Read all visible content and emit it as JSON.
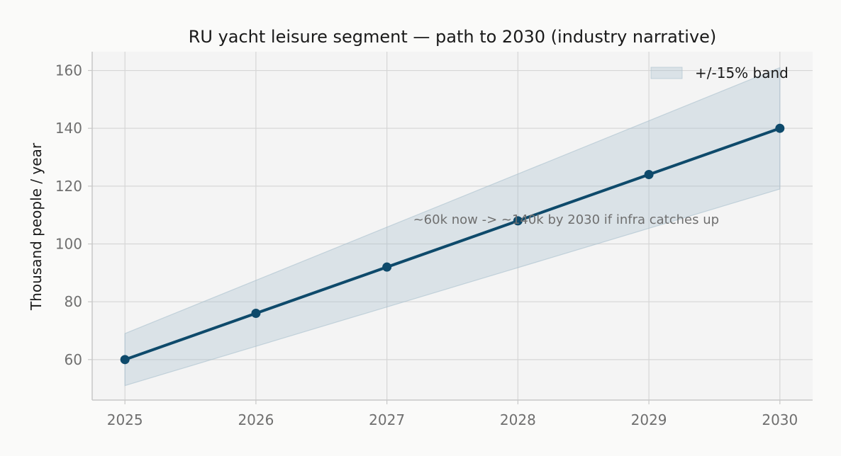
{
  "chart_data": {
    "type": "line",
    "title": "RU yacht leisure segment — path to 2030 (industry narrative)",
    "xlabel": "",
    "ylabel": "Thousand people / year",
    "x": [
      2025,
      2026,
      2027,
      2028,
      2029,
      2030
    ],
    "series": [
      {
        "values": [
          60,
          76,
          92,
          108,
          124,
          140
        ]
      }
    ],
    "band": {
      "name": "+/-15% band",
      "lower": [
        51,
        64.6,
        78.2,
        91.8,
        105.4,
        119
      ],
      "upper": [
        69,
        87.4,
        105.8,
        124.2,
        142.6,
        161
      ]
    },
    "xlim": [
      2024.75,
      2030.25
    ],
    "ylim": [
      46,
      166.5
    ],
    "xticks": [
      "2025",
      "2026",
      "2027",
      "2028",
      "2029",
      "2030"
    ],
    "yticks": [
      "60",
      "80",
      "100",
      "120",
      "140",
      "160"
    ],
    "ytick_values": [
      60,
      80,
      100,
      120,
      140,
      160
    ],
    "grid": true,
    "legend_position": "top-right",
    "annotation": {
      "text": "~60k now -> ~140k by 2030 if infra catches up",
      "x": 2027.2,
      "y": 105
    },
    "colors": {
      "line": "#0e4a6b",
      "band": "#a9bfcd",
      "plot_bg": "#f4f4f4",
      "grid": "#d6d6d6",
      "axis": "#c8c8c8"
    }
  }
}
